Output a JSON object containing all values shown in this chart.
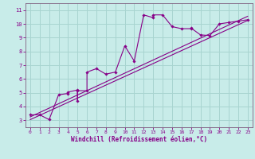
{
  "xlabel": "Windchill (Refroidissement éolien,°C)",
  "bg_color": "#c8ece9",
  "grid_color": "#a8d4d0",
  "line_color": "#880088",
  "spine_color": "#806080",
  "xlim": [
    -0.5,
    23.5
  ],
  "ylim": [
    2.5,
    11.5
  ],
  "xticks": [
    0,
    1,
    2,
    3,
    4,
    5,
    6,
    7,
    8,
    9,
    10,
    11,
    12,
    13,
    14,
    15,
    16,
    17,
    18,
    19,
    20,
    21,
    22,
    23
  ],
  "yticks": [
    3,
    4,
    5,
    6,
    7,
    8,
    9,
    10,
    11
  ],
  "scatter_x": [
    0,
    1,
    2,
    3,
    4,
    4,
    5,
    5,
    5,
    6,
    6,
    7,
    8,
    9,
    10,
    11,
    12,
    13,
    13,
    14,
    15,
    16,
    17,
    17,
    18,
    19,
    20,
    21,
    22,
    23
  ],
  "scatter_y": [
    3.4,
    3.4,
    3.05,
    4.85,
    4.95,
    5.05,
    5.2,
    4.4,
    5.15,
    5.15,
    6.5,
    6.75,
    6.35,
    6.5,
    8.4,
    7.3,
    10.65,
    10.45,
    10.65,
    10.65,
    9.8,
    9.65,
    9.65,
    9.7,
    9.2,
    9.15,
    10.0,
    10.1,
    10.2,
    10.3
  ],
  "line1_x": [
    0,
    23
  ],
  "line1_y": [
    3.25,
    10.55
  ],
  "line2_x": [
    0,
    23
  ],
  "line2_y": [
    3.05,
    10.25
  ]
}
